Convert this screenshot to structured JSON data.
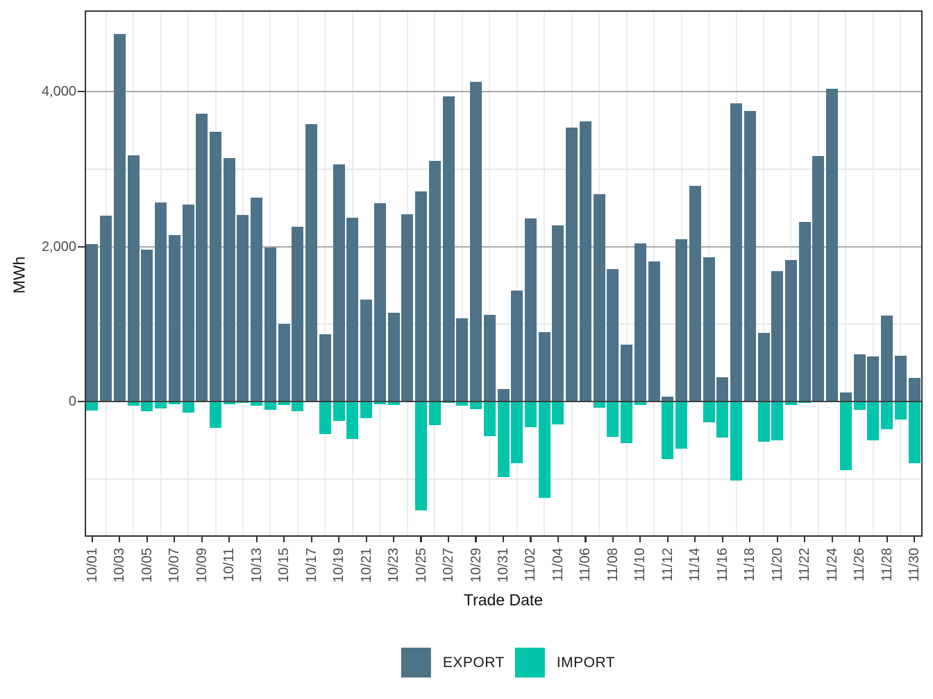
{
  "y_axis": {
    "label": "MWh",
    "ticks": [
      "4,000",
      "2,000",
      "0"
    ],
    "tick_values": [
      4000,
      2000,
      0
    ]
  },
  "x_axis": {
    "label": "Trade Date"
  },
  "legend": {
    "items": [
      {
        "label": "EXPORT",
        "color": "#4e7389"
      },
      {
        "label": "IMPORT",
        "color": "#00c5ab"
      }
    ]
  },
  "chart_data": {
    "type": "bar",
    "title": "",
    "xlabel": "Trade Date",
    "ylabel": "MWh",
    "ylim": [
      -1728,
      5040
    ],
    "grid": true,
    "legend_position": "bottom",
    "yticks_major": [
      0,
      2000,
      4000
    ],
    "yticks_minor": [
      -1000,
      1000,
      3000
    ],
    "x": [
      "10/01",
      "10/02",
      "10/03",
      "10/04",
      "10/05",
      "10/06",
      "10/07",
      "10/08",
      "10/09",
      "10/10",
      "10/11",
      "10/12",
      "10/13",
      "10/14",
      "10/15",
      "10/16",
      "10/17",
      "10/18",
      "10/19",
      "10/20",
      "10/21",
      "10/22",
      "10/23",
      "10/24",
      "10/25",
      "10/26",
      "10/27",
      "10/28",
      "10/29",
      "10/30",
      "10/31",
      "11/01",
      "11/02",
      "11/03",
      "11/04",
      "11/05",
      "11/06",
      "11/07",
      "11/08",
      "11/09",
      "11/10",
      "11/11",
      "11/12",
      "11/13",
      "11/14",
      "11/15",
      "11/16",
      "11/17",
      "11/18",
      "11/19",
      "11/20",
      "11/21",
      "11/22",
      "11/23",
      "11/24",
      "11/25",
      "11/26",
      "11/27",
      "11/28",
      "11/29",
      "11/30"
    ],
    "x_tick_labels": [
      "10/01",
      "10/03",
      "10/05",
      "10/07",
      "10/09",
      "10/11",
      "10/13",
      "10/15",
      "10/17",
      "10/19",
      "10/21",
      "10/23",
      "10/25",
      "10/27",
      "10/29",
      "10/31",
      "11/02",
      "11/04",
      "11/06",
      "11/08",
      "11/10",
      "11/12",
      "11/14",
      "11/16",
      "11/18",
      "11/20",
      "11/22",
      "11/24",
      "11/26",
      "11/28",
      "11/30"
    ],
    "series": [
      {
        "name": "EXPORT",
        "color": "#4e7389",
        "values": [
          2030,
          2400,
          4745,
          3180,
          1965,
          2565,
          2150,
          2545,
          3715,
          3485,
          3145,
          2410,
          2630,
          1985,
          1000,
          2260,
          3585,
          870,
          3065,
          2375,
          1320,
          2560,
          1150,
          2415,
          2715,
          3110,
          3935,
          1075,
          4125,
          1120,
          160,
          1430,
          2365,
          895,
          2275,
          3535,
          3615,
          2680,
          1710,
          730,
          2040,
          1805,
          60,
          2095,
          2780,
          1860,
          315,
          3850,
          3755,
          885,
          1685,
          1825,
          2320,
          3170,
          4035,
          120,
          610,
          580,
          1110,
          595,
          300
        ]
      },
      {
        "name": "IMPORT",
        "color": "#00c5ab",
        "values": [
          -120,
          -12,
          -6,
          -57,
          -122,
          -89,
          -38,
          -144,
          -13,
          -340,
          -40,
          -18,
          -53,
          -107,
          -45,
          -128,
          -6,
          -425,
          -253,
          -480,
          -213,
          -34,
          -44,
          -13,
          -1410,
          -300,
          -22,
          -55,
          -100,
          -450,
          -980,
          -795,
          -330,
          -1245,
          -295,
          -13,
          -9,
          -83,
          -455,
          -535,
          -42,
          -12,
          -740,
          -608,
          -13,
          -268,
          -465,
          -1025,
          -13,
          -515,
          -505,
          -46,
          -22,
          -13,
          -6,
          -890,
          -105,
          -505,
          -355,
          -235,
          -800
        ]
      }
    ]
  }
}
